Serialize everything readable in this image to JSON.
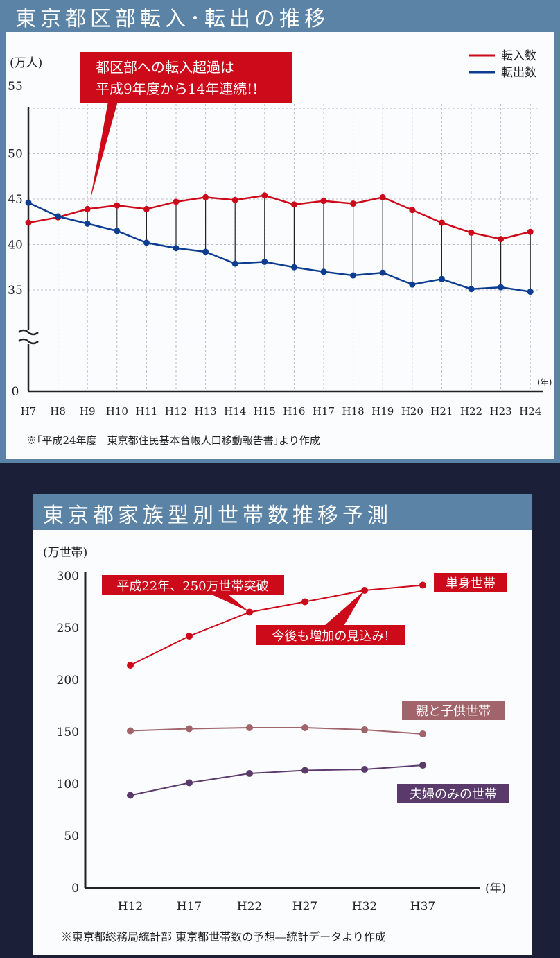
{
  "colors": {
    "background": "#1b1f38",
    "panel_header": "#5b83a6",
    "panel_body": "#fbfcfe",
    "inflow": "#cc0a1a",
    "outflow": "#0c3d91",
    "single": "#cc0a1a",
    "parent_child": "#a0646a",
    "couple": "#5a3a6b"
  },
  "panel1": {
    "title": "東京都区部転入･転出の推移",
    "callout": [
      "都区部への転入超過は",
      "平成9年度から14年連続!!"
    ],
    "source": "※｢平成24年度　東京都住民基本台帳人口移動報告書｣より作成"
  },
  "panel2": {
    "title": "東京都家族型別世帯数推移予測",
    "callout_2010": "平成22年、250万世帯突破",
    "callout_future": "今後も増加の見込み!",
    "source": "※東京都総務局統計部 東京都世帯数の予想―統計データより作成"
  },
  "chart_data": [
    {
      "type": "line",
      "title": "東京都区部転入･転出の推移",
      "ylabel": "(万人)",
      "xlabel": "(年)",
      "y_ticks": [
        "55",
        "50",
        "45",
        "40",
        "35",
        "0"
      ],
      "ylim": [
        35,
        55
      ],
      "axis_break": true,
      "categories": [
        "H7",
        "H8",
        "H9",
        "H10",
        "H11",
        "H12",
        "H13",
        "H14",
        "H15",
        "H16",
        "H17",
        "H18",
        "H19",
        "H20",
        "H21",
        "H22",
        "H23",
        "H24"
      ],
      "series": [
        {
          "name": "転入数",
          "color": "#cc0a1a",
          "values": [
            42.4,
            43.0,
            43.9,
            44.3,
            43.9,
            44.7,
            45.2,
            44.9,
            45.4,
            44.4,
            44.8,
            44.5,
            45.2,
            43.8,
            42.4,
            41.3,
            40.6,
            41.4
          ]
        },
        {
          "name": "転出数",
          "color": "#0c3d91",
          "values": [
            44.6,
            43.1,
            42.3,
            41.5,
            40.2,
            39.6,
            39.2,
            37.9,
            38.1,
            37.5,
            37.0,
            36.6,
            36.9,
            35.6,
            36.2,
            35.1,
            35.3,
            34.8
          ]
        }
      ],
      "legend_position": "top-right",
      "grid": true
    },
    {
      "type": "line",
      "title": "東京都家族型別世帯数推移予測",
      "ylabel": "(万世帯)",
      "xlabel": "(年)",
      "y_ticks": [
        "300",
        "250",
        "200",
        "150",
        "100",
        "50",
        "0"
      ],
      "ylim": [
        0,
        300
      ],
      "categories": [
        "H12",
        "H17",
        "H22",
        "H27",
        "H32",
        "H37"
      ],
      "series": [
        {
          "name": "単身世帯",
          "color": "#cc0a1a",
          "values": [
            214,
            242,
            265,
            275,
            286,
            291
          ]
        },
        {
          "name": "親と子供世帯",
          "color": "#a0646a",
          "values": [
            151,
            153,
            154,
            154,
            152,
            148
          ]
        },
        {
          "name": "夫婦のみの世帯",
          "color": "#5a3a6b",
          "values": [
            89,
            101,
            110,
            113,
            114,
            118
          ]
        }
      ],
      "grid": false
    }
  ]
}
